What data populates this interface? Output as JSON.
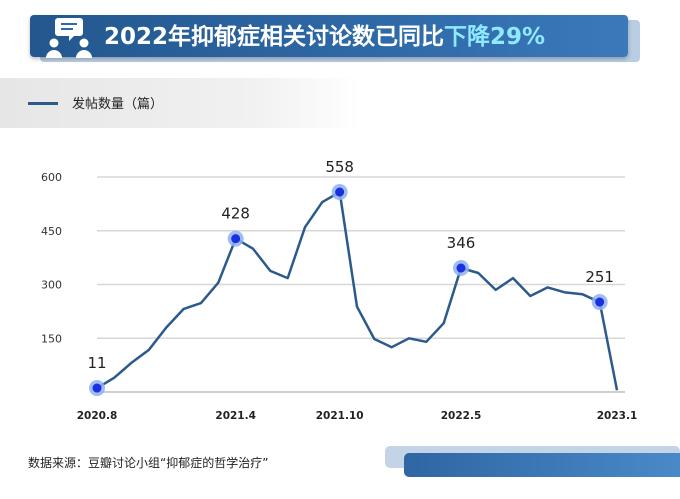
{
  "header": {
    "title_main": "2022年抑郁症相关讨论数已同比",
    "title_highlight": "下降29%"
  },
  "legend": {
    "label": "发帖数量（篇）"
  },
  "source": {
    "text": "数据来源：豆瓣讨论小组“抑郁症的哲学治疗”"
  },
  "colors": {
    "header": "#2f6aa8",
    "highlight": "#8fe9ff",
    "line": "#2c5a8c",
    "marker": "#1a2fe0",
    "marker_halo": "#8fb2ef"
  },
  "icons": {
    "header": "people-discussion-icon"
  },
  "chart_data": {
    "type": "line",
    "series": [
      {
        "values": [
          11,
          40,
          82,
          118,
          180,
          232,
          248,
          305,
          428,
          400,
          338,
          318,
          460,
          530,
          558,
          238,
          148,
          125,
          150,
          140,
          192,
          346,
          332,
          285,
          318,
          268,
          292,
          278,
          273,
          251,
          5
        ]
      }
    ],
    "x_ticks": [
      {
        "index": 0,
        "label": "2020.8"
      },
      {
        "index": 8,
        "label": "2021.4"
      },
      {
        "index": 14,
        "label": "2021.10"
      },
      {
        "index": 21,
        "label": "2022.5"
      },
      {
        "index": 30,
        "label": "2023.1"
      }
    ],
    "y_ticks": [
      150,
      300,
      450,
      600
    ],
    "ylim": [
      0,
      600
    ],
    "grid": true,
    "annotations": [
      {
        "index": 0,
        "label": "11"
      },
      {
        "index": 8,
        "label": "428"
      },
      {
        "index": 14,
        "label": "558"
      },
      {
        "index": 21,
        "label": "346"
      },
      {
        "index": 29,
        "label": "251"
      }
    ]
  }
}
